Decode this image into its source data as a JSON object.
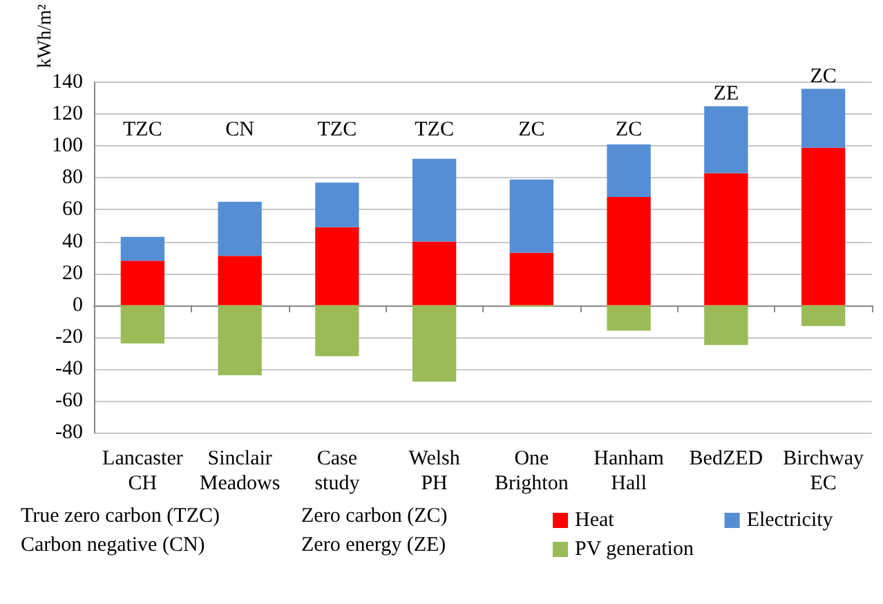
{
  "chart_data": {
    "type": "bar",
    "stacked": true,
    "ylabel": "kWh/m²",
    "categories": [
      "Lancaster\nCH",
      "Sinclair\nMeadows",
      "Case\nstudy",
      "Welsh\nPH",
      "One\nBrighton",
      "Hanham\nHall",
      "BedZED",
      "Birchway\nEC"
    ],
    "series": [
      {
        "name": "Heat",
        "color": "#ff0000",
        "values": [
          28,
          31,
          49,
          40,
          33,
          68,
          83,
          99
        ]
      },
      {
        "name": "Electricity",
        "color": "#558ed5",
        "values": [
          15,
          34,
          28,
          52,
          46,
          33,
          42,
          37
        ]
      },
      {
        "name": "PV generation",
        "color": "#9bbb59",
        "values": [
          -24,
          -44,
          -32,
          -48,
          -1,
          -16,
          -25,
          -13
        ]
      }
    ],
    "ylim": [
      -80,
      140
    ],
    "yticks": [
      -80,
      -60,
      -40,
      -20,
      0,
      20,
      40,
      60,
      80,
      100,
      120,
      140
    ],
    "grid": "y",
    "legend": "bottom right",
    "annotations": [
      "TZC",
      "CN",
      "TZC",
      "TZC",
      "ZC",
      "ZC",
      "ZE",
      "ZC",
      "True zero carbon (TZC)",
      "Zero carbon (ZC)",
      "Carbon negative (CN)",
      "Zero energy (ZE)"
    ]
  }
}
